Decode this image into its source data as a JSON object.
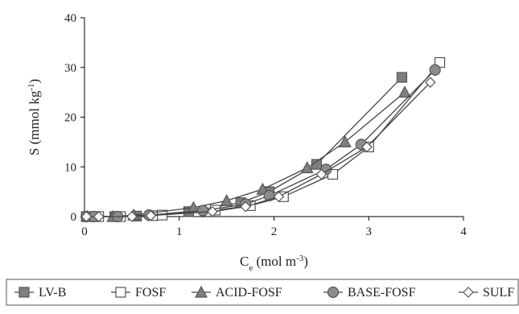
{
  "chart_data": {
    "type": "scatter",
    "title": "",
    "xlabel": {
      "main": "C",
      "sub": "e",
      "unit_pre": " (mol m",
      "unit_sup": "-3",
      "unit_post": ")"
    },
    "ylabel": {
      "main": "S (mmol kg",
      "sup": "-1",
      "post": ")"
    },
    "xlim": [
      0,
      4
    ],
    "ylim": [
      0,
      40
    ],
    "x_ticks": [
      "0",
      "1",
      "2",
      "3",
      "4"
    ],
    "y_ticks": [
      "0",
      "10",
      "20",
      "30",
      "40"
    ],
    "grid": false,
    "legend_position": "bottom",
    "series": [
      {
        "name": "LV-B",
        "marker": "square",
        "fill": "#7f7f7f",
        "points": [
          [
            0.02,
            0.0
          ],
          [
            0.12,
            0.0
          ],
          [
            0.32,
            0.0
          ],
          [
            0.55,
            0.1
          ],
          [
            1.1,
            1.0
          ],
          [
            1.65,
            2.8
          ],
          [
            1.95,
            5.0
          ],
          [
            2.45,
            10.5
          ],
          [
            3.35,
            28.0
          ]
        ]
      },
      {
        "name": "FOSF",
        "marker": "square",
        "fill": "#ffffff",
        "points": [
          [
            0.02,
            0.0
          ],
          [
            0.15,
            0.0
          ],
          [
            0.38,
            0.0
          ],
          [
            0.72,
            0.2
          ],
          [
            0.82,
            0.3
          ],
          [
            1.38,
            1.3
          ],
          [
            1.75,
            2.2
          ],
          [
            2.1,
            4.0
          ],
          [
            2.62,
            8.5
          ],
          [
            3.0,
            14.0
          ],
          [
            3.75,
            31.0
          ]
        ]
      },
      {
        "name": "ACID-FOSF",
        "marker": "triangle",
        "fill": "#7f7f7f",
        "points": [
          [
            0.03,
            0.0
          ],
          [
            0.3,
            0.0
          ],
          [
            0.52,
            0.3
          ],
          [
            1.15,
            1.8
          ],
          [
            1.5,
            3.2
          ],
          [
            1.88,
            5.5
          ],
          [
            2.35,
            9.8
          ],
          [
            2.75,
            15.0
          ],
          [
            3.38,
            25.0
          ]
        ]
      },
      {
        "name": "BASE-FOSF",
        "marker": "circle",
        "fill": "#8c8c8c",
        "points": [
          [
            0.02,
            0.0
          ],
          [
            0.1,
            0.0
          ],
          [
            0.35,
            0.0
          ],
          [
            0.68,
            0.3
          ],
          [
            1.25,
            1.2
          ],
          [
            1.7,
            2.5
          ],
          [
            1.95,
            4.2
          ],
          [
            2.55,
            9.5
          ],
          [
            2.92,
            14.5
          ],
          [
            3.7,
            29.5
          ]
        ]
      },
      {
        "name": "SULF",
        "marker": "diamond",
        "fill": "#ffffff",
        "points": [
          [
            0.02,
            0.0
          ],
          [
            0.15,
            0.0
          ],
          [
            0.5,
            0.0
          ],
          [
            0.7,
            0.2
          ],
          [
            1.35,
            1.0
          ],
          [
            1.7,
            2.0
          ],
          [
            2.05,
            4.0
          ],
          [
            2.5,
            8.5
          ],
          [
            2.98,
            14.0
          ],
          [
            3.65,
            27.0
          ]
        ]
      }
    ]
  }
}
